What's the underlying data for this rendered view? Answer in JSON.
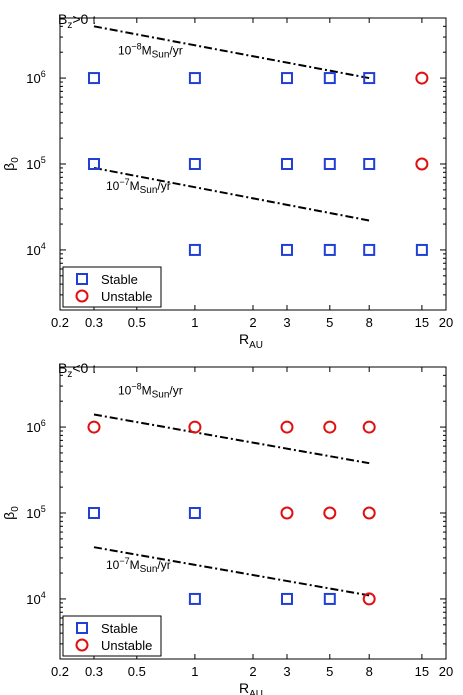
{
  "chart_data": [
    {
      "type": "scatter",
      "title": "B_z>0 :",
      "title_parts": {
        "base": "B",
        "sub": "z",
        "rest": ">0 :"
      },
      "xlabel": {
        "base": "R",
        "sub": "AU"
      },
      "ylabel": {
        "base": "β",
        "sub": "0"
      },
      "xscale": "log",
      "yscale": "log",
      "xlim": [
        0.2,
        20
      ],
      "ylim": [
        2000,
        5000000
      ],
      "xticks": [
        0.2,
        0.3,
        0.5,
        1,
        2,
        3,
        5,
        8,
        15,
        20
      ],
      "xtick_labels": [
        "0.2",
        "0.3",
        "0.5",
        "1",
        "2",
        "3",
        "5",
        "8",
        "15",
        "20"
      ],
      "yticks": [
        {
          "value": 10000,
          "base": "10",
          "exp": "4"
        },
        {
          "value": 100000,
          "base": "10",
          "exp": "5"
        },
        {
          "value": 1000000,
          "base": "10",
          "exp": "6"
        }
      ],
      "legend_position": "bottom-left",
      "series": [
        {
          "name": "Stable",
          "marker": "square",
          "color": "#1f3fd6",
          "points": [
            [
              0.3,
              1000000
            ],
            [
              1,
              1000000
            ],
            [
              3,
              1000000
            ],
            [
              5,
              1000000
            ],
            [
              8,
              1000000
            ],
            [
              0.3,
              100000
            ],
            [
              1,
              100000
            ],
            [
              3,
              100000
            ],
            [
              5,
              100000
            ],
            [
              8,
              100000
            ],
            [
              1,
              10000
            ],
            [
              3,
              10000
            ],
            [
              5,
              10000
            ],
            [
              8,
              10000
            ],
            [
              15,
              10000
            ]
          ]
        },
        {
          "name": "Unstable",
          "marker": "circle",
          "color": "#e01010",
          "points": [
            [
              15,
              1000000
            ],
            [
              15,
              100000
            ]
          ]
        }
      ],
      "lines": [
        {
          "x": [
            0.3,
            8
          ],
          "y": [
            4000000,
            1000000
          ],
          "label": {
            "coef": "10",
            "exp": "−8",
            "base": "M",
            "sub": "Sun",
            "rest": "/yr"
          }
        },
        {
          "x": [
            0.3,
            8
          ],
          "y": [
            90000,
            22000
          ],
          "label": {
            "coef": "10",
            "exp": "−7",
            "base": "M",
            "sub": "Sun",
            "rest": "/yr"
          }
        }
      ]
    },
    {
      "type": "scatter",
      "title": "B_z<0 :",
      "title_parts": {
        "base": "B",
        "sub": "z",
        "rest": "<0 :"
      },
      "xlabel": {
        "base": "R",
        "sub": "AU"
      },
      "ylabel": {
        "base": "β",
        "sub": "0"
      },
      "xscale": "log",
      "yscale": "log",
      "xlim": [
        0.2,
        20
      ],
      "ylim": [
        2000,
        5000000
      ],
      "xticks": [
        0.2,
        0.3,
        0.5,
        1,
        2,
        3,
        5,
        8,
        15,
        20
      ],
      "xtick_labels": [
        "0.2",
        "0.3",
        "0.5",
        "1",
        "2",
        "3",
        "5",
        "8",
        "15",
        "20"
      ],
      "yticks": [
        {
          "value": 10000,
          "base": "10",
          "exp": "4"
        },
        {
          "value": 100000,
          "base": "10",
          "exp": "5"
        },
        {
          "value": 1000000,
          "base": "10",
          "exp": "6"
        }
      ],
      "legend_position": "bottom-left",
      "series": [
        {
          "name": "Stable",
          "marker": "square",
          "color": "#1f3fd6",
          "points": [
            [
              0.3,
              100000
            ],
            [
              1,
              100000
            ],
            [
              1,
              10000
            ],
            [
              3,
              10000
            ],
            [
              5,
              10000
            ]
          ]
        },
        {
          "name": "Unstable",
          "marker": "circle",
          "color": "#e01010",
          "points": [
            [
              0.3,
              1000000
            ],
            [
              1,
              1000000
            ],
            [
              3,
              1000000
            ],
            [
              5,
              1000000
            ],
            [
              8,
              1000000
            ],
            [
              3,
              100000
            ],
            [
              5,
              100000
            ],
            [
              8,
              100000
            ],
            [
              8,
              10000
            ]
          ]
        }
      ],
      "lines": [
        {
          "x": [
            0.3,
            8
          ],
          "y": [
            1400000,
            380000
          ],
          "label": {
            "coef": "10",
            "exp": "−8",
            "base": "M",
            "sub": "Sun",
            "rest": "/yr"
          }
        },
        {
          "x": [
            0.3,
            8
          ],
          "y": [
            40000,
            11000
          ],
          "label": {
            "coef": "10",
            "exp": "−7",
            "base": "M",
            "sub": "Sun",
            "rest": "/yr"
          }
        }
      ]
    }
  ]
}
